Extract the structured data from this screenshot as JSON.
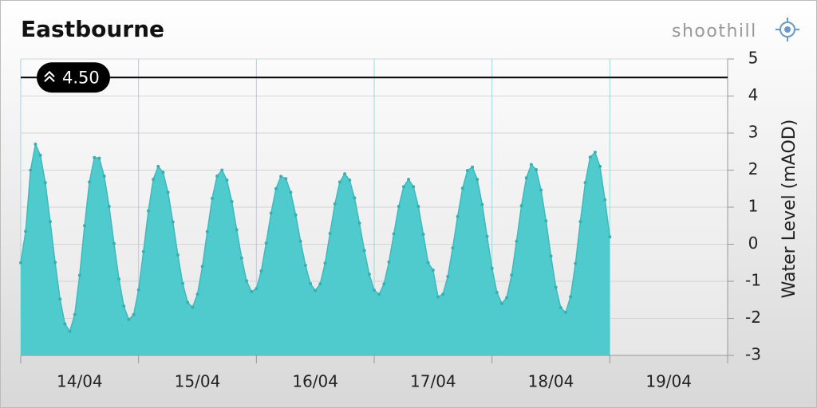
{
  "chart_data": {
    "type": "area",
    "title": "Eastbourne",
    "brand": "shoothill",
    "y_label": "Water Level (mAOD)",
    "x": [
      0,
      1,
      2,
      3,
      4,
      5,
      6,
      7,
      8,
      9,
      10,
      11,
      12,
      13,
      14,
      15,
      16,
      17,
      18,
      19,
      20,
      21,
      22,
      23,
      24,
      25,
      26,
      27,
      28,
      29,
      30,
      31,
      32,
      33,
      34,
      35,
      36,
      37,
      38,
      39,
      40,
      41,
      42,
      43,
      44,
      45,
      46,
      47,
      48,
      49,
      50,
      51,
      52,
      53,
      54,
      55,
      56,
      57,
      58,
      59,
      60,
      61,
      62,
      63,
      64,
      65,
      66,
      67,
      68,
      69,
      70,
      71,
      72,
      73,
      74,
      75,
      76,
      77,
      78,
      79,
      80,
      81,
      82,
      83,
      84,
      85,
      86,
      87,
      88,
      89,
      90,
      91,
      92,
      93,
      94,
      95,
      96,
      97,
      98,
      99,
      100,
      101,
      102,
      103,
      104,
      105,
      106,
      107,
      108,
      109,
      110,
      111,
      112,
      113,
      114,
      115,
      116,
      117,
      118,
      119,
      120
    ],
    "series": [
      {
        "color": "#4fcbce",
        "values": [
          -0.5,
          0.35,
          2.0,
          2.7,
          2.4,
          1.66,
          0.61,
          -0.49,
          -1.48,
          -2.15,
          -2.35,
          -1.9,
          -0.84,
          0.5,
          1.68,
          2.34,
          2.32,
          1.84,
          1.02,
          0.02,
          -0.94,
          -1.67,
          -2.03,
          -1.9,
          -1.23,
          -0.2,
          0.9,
          1.75,
          2.1,
          1.94,
          1.4,
          0.6,
          -0.29,
          -1.06,
          -1.57,
          -1.7,
          -1.35,
          -0.6,
          0.34,
          1.24,
          1.84,
          2.0,
          1.73,
          1.15,
          0.39,
          -0.37,
          -0.99,
          -1.28,
          -1.2,
          -0.72,
          0.03,
          0.84,
          1.5,
          1.83,
          1.77,
          1.4,
          0.79,
          0.08,
          -0.57,
          -1.06,
          -1.25,
          -1.07,
          -0.51,
          0.29,
          1.09,
          1.68,
          1.9,
          1.73,
          1.25,
          0.57,
          -0.17,
          -0.81,
          -1.24,
          -1.35,
          -1.07,
          -0.48,
          0.28,
          1.02,
          1.55,
          1.75,
          1.55,
          1.02,
          0.27,
          -0.5,
          -0.7,
          -1.42,
          -1.35,
          -0.87,
          -0.1,
          0.75,
          1.51,
          1.99,
          2.08,
          1.75,
          1.07,
          0.21,
          -0.65,
          -1.3,
          -1.6,
          -1.44,
          -0.83,
          0.08,
          1.04,
          1.79,
          2.15,
          2.01,
          1.46,
          0.63,
          -0.32,
          -1.16,
          -1.71,
          -1.84,
          -1.42,
          -0.52,
          0.61,
          1.66,
          2.35,
          2.48,
          2.1,
          1.2,
          0.2
        ]
      }
    ],
    "threshold": {
      "value": 4.5,
      "label": "4.50"
    },
    "xlim": [
      0,
      144
    ],
    "xticks": [
      {
        "value": 12,
        "label": "14/04"
      },
      {
        "value": 36,
        "label": "15/04"
      },
      {
        "value": 60,
        "label": "16/04"
      },
      {
        "value": 84,
        "label": "17/04"
      },
      {
        "value": 108,
        "label": "18/04"
      },
      {
        "value": 132,
        "label": "19/04"
      }
    ],
    "x_gridlines": [
      0,
      24,
      48,
      72,
      96,
      120,
      144
    ],
    "ylim": [
      -3,
      5
    ],
    "yticks": [
      -3,
      -2,
      -1,
      0,
      1,
      2,
      3,
      4,
      5
    ],
    "grid": true
  }
}
